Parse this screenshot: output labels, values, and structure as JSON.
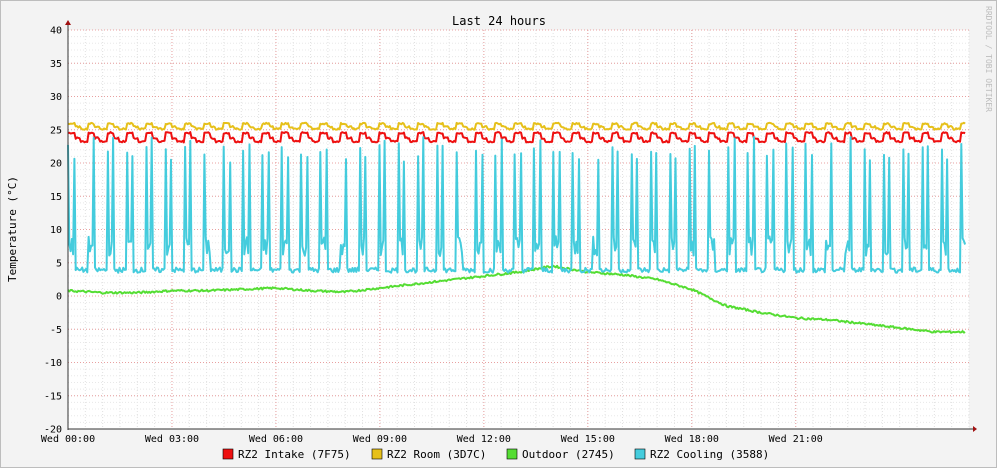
{
  "chart_data": {
    "type": "line",
    "title": "Last 24 hours",
    "ylabel": "Temperature (°C)",
    "watermark": "RRDTOOL / TOBI OETIKER",
    "ylim": [
      -20,
      40
    ],
    "yticks": [
      40,
      35,
      30,
      25,
      20,
      15,
      10,
      5,
      0,
      -5,
      -10,
      -15,
      -20
    ],
    "xlim_hours": [
      0,
      26
    ],
    "xticks": [
      {
        "hour": 0,
        "label": "Wed 00:00"
      },
      {
        "hour": 3,
        "label": "Wed 03:00"
      },
      {
        "hour": 6,
        "label": "Wed 06:00"
      },
      {
        "hour": 9,
        "label": "Wed 09:00"
      },
      {
        "hour": 12,
        "label": "Wed 12:00"
      },
      {
        "hour": 15,
        "label": "Wed 15:00"
      },
      {
        "hour": 18,
        "label": "Wed 18:00"
      },
      {
        "hour": 21,
        "label": "Wed 21:00"
      }
    ],
    "grid": true,
    "legend_position": "bottom",
    "series": [
      {
        "name": "RZ2 Intake (7F75)",
        "color": "#ee1010",
        "kind": "sawtooth",
        "base": 23.3,
        "amplitude": 1.3,
        "period_hours": 0.56
      },
      {
        "name": "RZ2 Room (3D7C)",
        "color": "#e6c01a",
        "kind": "sawtooth",
        "base": 25.2,
        "amplitude": 0.8,
        "period_hours": 0.56
      },
      {
        "name": "Outdoor (2745)",
        "color": "#55dd33",
        "kind": "trend",
        "x": [
          0,
          1,
          2,
          3,
          4,
          5,
          6,
          7,
          8,
          9,
          10,
          11,
          12,
          13,
          14,
          15,
          16,
          17,
          18,
          19,
          20,
          21,
          22,
          23,
          24,
          25
        ],
        "y": [
          0.8,
          0.5,
          0.5,
          0.8,
          0.8,
          1.0,
          1.2,
          0.8,
          0.6,
          1.2,
          1.8,
          2.4,
          3.0,
          3.6,
          4.5,
          3.6,
          3.2,
          2.5,
          1.0,
          -1.5,
          -2.5,
          -3.3,
          -3.6,
          -4.2,
          -4.8,
          -5.4
        ]
      },
      {
        "name": "RZ2 Cooling (3588)",
        "color": "#44ccdd",
        "kind": "cycles",
        "low": 3.5,
        "high": 23,
        "period_hours": 0.56
      }
    ]
  }
}
